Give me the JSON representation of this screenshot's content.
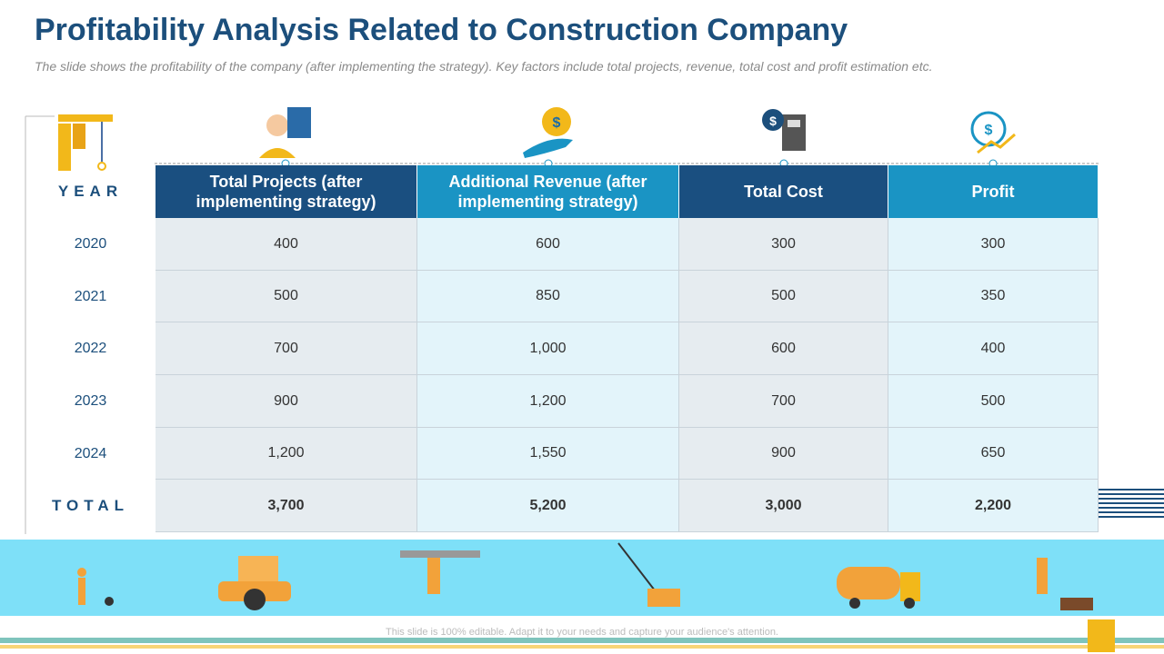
{
  "header": {
    "title": "Profitability Analysis Related to Construction Company",
    "subtitle": "The slide shows  the profitability of the company (after implementing the strategy).  Key factors include total projects, revenue, total cost and profit estimation etc."
  },
  "table": {
    "year_label": "YEAR",
    "columns": [
      "Total Projects (after implementing strategy)",
      "Additional Revenue (after implementing strategy)",
      "Total Cost",
      "Profit"
    ],
    "rows": [
      [
        "2020",
        "400",
        "600",
        "300",
        "300"
      ],
      [
        "2021",
        "500",
        "850",
        "500",
        "350"
      ],
      [
        "2022",
        "700",
        "1,000",
        "600",
        "400"
      ],
      [
        "2023",
        "900",
        "1,200",
        "700",
        "500"
      ],
      [
        "2024",
        "1,200",
        "1,550",
        "900",
        "650"
      ]
    ],
    "total": [
      "TOTAL",
      "3,700",
      "5,200",
      "3,000",
      "2,200"
    ]
  },
  "footer": "This slide is 100% editable. Adapt it to your needs and capture your audience's attention."
}
